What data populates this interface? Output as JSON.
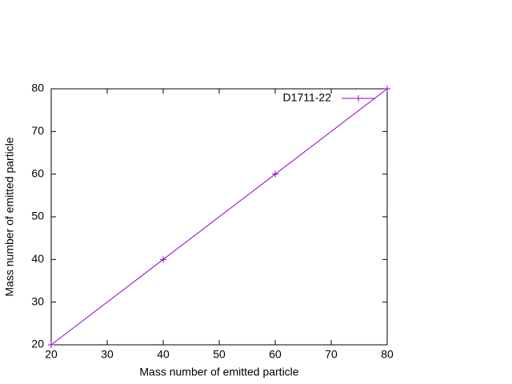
{
  "chart_data": {
    "type": "line",
    "x_label": "Mass number of emitted particle",
    "y_label": "Mass number of emitted particle",
    "x": [
      20,
      40,
      60,
      80
    ],
    "series": [
      {
        "name": "D1711-22",
        "color": "#9400d3",
        "values": [
          20,
          40,
          60,
          80
        ]
      }
    ],
    "xlim": [
      20,
      80
    ],
    "ylim": [
      20,
      80
    ],
    "xticks": [
      20,
      30,
      40,
      50,
      60,
      70,
      80
    ],
    "yticks": [
      20,
      30,
      40,
      50,
      60,
      70,
      80
    ],
    "grid": false,
    "legend": "top-right"
  }
}
